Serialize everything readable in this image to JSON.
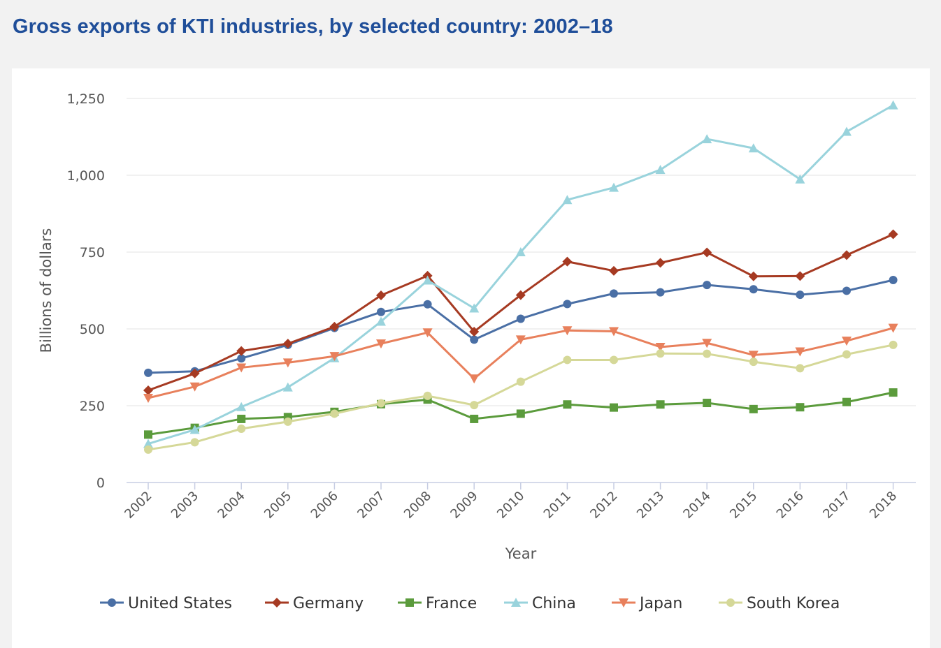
{
  "title": "Gross exports of KTI industries, by selected country: 2002–18",
  "chart_data": {
    "type": "line",
    "title": "Gross exports of KTI industries, by selected country: 2002–18",
    "xlabel": "Year",
    "ylabel": "Billions of dollars",
    "ylim": [
      0,
      1250
    ],
    "yticks": [
      0,
      250,
      500,
      750,
      1000,
      1250
    ],
    "ytick_labels": [
      "0",
      "250",
      "500",
      "750",
      "1,000",
      "1,250"
    ],
    "grid": true,
    "legend_position": "bottom",
    "categories": [
      "2002",
      "2003",
      "2004",
      "2005",
      "2006",
      "2007",
      "2008",
      "2009",
      "2010",
      "2011",
      "2012",
      "2013",
      "2014",
      "2015",
      "2016",
      "2017",
      "2018"
    ],
    "series": [
      {
        "name": "United States",
        "color": "#4a6fa5",
        "marker": "circle",
        "values": [
          357,
          362,
          404,
          448,
          503,
          555,
          580,
          465,
          533,
          581,
          615,
          619,
          643,
          629,
          611,
          624,
          659
        ]
      },
      {
        "name": "Germany",
        "color": "#a63a22",
        "marker": "diamond",
        "values": [
          300,
          355,
          428,
          452,
          507,
          609,
          673,
          491,
          610,
          719,
          689,
          715,
          749,
          671,
          672,
          740,
          808
        ]
      },
      {
        "name": "France",
        "color": "#5b9b3c",
        "marker": "square",
        "values": [
          156,
          178,
          207,
          213,
          230,
          255,
          270,
          207,
          224,
          254,
          244,
          254,
          259,
          239,
          245,
          262,
          293
        ]
      },
      {
        "name": "China",
        "color": "#99d3dc",
        "marker": "triangle-up",
        "values": [
          126,
          172,
          246,
          310,
          405,
          524,
          658,
          567,
          750,
          920,
          960,
          1018,
          1118,
          1088,
          987,
          1142,
          1228
        ]
      },
      {
        "name": "Japan",
        "color": "#e8805c",
        "marker": "triangle-down",
        "values": [
          275,
          312,
          374,
          390,
          411,
          452,
          488,
          338,
          465,
          495,
          492,
          441,
          454,
          415,
          426,
          461,
          503
        ]
      },
      {
        "name": "South Korea",
        "color": "#d5d898",
        "marker": "circle",
        "values": [
          107,
          131,
          175,
          198,
          224,
          258,
          282,
          252,
          328,
          399,
          399,
          420,
          419,
          393,
          372,
          417,
          448
        ]
      }
    ]
  }
}
